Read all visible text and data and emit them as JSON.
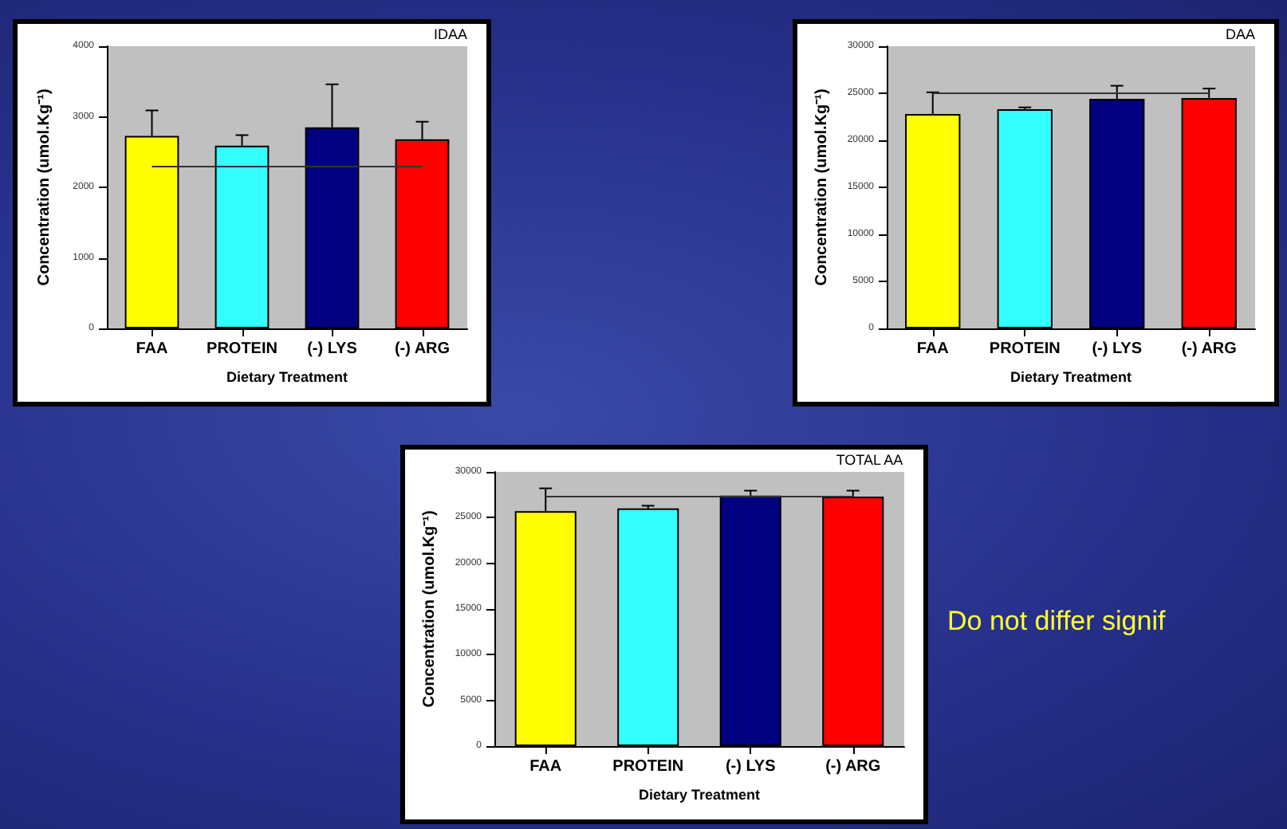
{
  "chart_data": [
    {
      "type": "bar",
      "title": "IDAA",
      "xlabel": "Dietary Treatment",
      "ylabel": "Concentration (umol.Kg⁻¹)",
      "categories": [
        "FAA",
        "PROTEIN",
        "(-) LYS",
        "(-) ARG"
      ],
      "values": [
        2730,
        2590,
        2850,
        2680
      ],
      "colors": [
        "#ffff00",
        "#33ffff",
        "#000080",
        "#ff0000"
      ],
      "errors": [
        [
          2730,
          3090
        ],
        [
          2590,
          2740
        ],
        [
          2850,
          3460
        ],
        [
          2680,
          2930
        ]
      ],
      "ylim": [
        0,
        4000
      ],
      "yticks": [
        0,
        1000,
        2000,
        3000,
        4000
      ],
      "ref_lines": [
        {
          "axis": "y",
          "value": 2300,
          "color": "#333333"
        }
      ]
    },
    {
      "type": "bar",
      "title": "DAA",
      "xlabel": "Dietary Treatment",
      "ylabel": "Concentration (umol.Kg⁻¹)",
      "categories": [
        "FAA",
        "PROTEIN",
        "(-) LYS",
        "(-) ARG"
      ],
      "values": [
        22800,
        23300,
        24400,
        24500
      ],
      "colors": [
        "#ffff00",
        "#33ffff",
        "#000080",
        "#ff0000"
      ],
      "errors": [
        [
          22800,
          25100
        ],
        [
          23300,
          23500
        ],
        [
          24400,
          25800
        ],
        [
          24500,
          25500
        ]
      ],
      "ylim": [
        0,
        30000
      ],
      "yticks": [
        0,
        5000,
        10000,
        15000,
        20000,
        25000,
        30000
      ],
      "ref_lines": [
        {
          "axis": "y",
          "value": 25000,
          "color": "#333333"
        }
      ]
    },
    {
      "type": "bar",
      "title": "TOTAL AA",
      "xlabel": "Dietary Treatment",
      "ylabel": "Concentration (umol.Kg⁻¹)",
      "categories": [
        "FAA",
        "PROTEIN",
        "(-) LYS",
        "(-) ARG"
      ],
      "values": [
        25700,
        26000,
        27400,
        27300
      ],
      "colors": [
        "#ffff00",
        "#33ffff",
        "#000080",
        "#ff0000"
      ],
      "errors": [
        [
          25700,
          28200
        ],
        [
          26000,
          26300
        ],
        [
          27400,
          27950
        ],
        [
          27300,
          27950
        ]
      ],
      "ylim": [
        0,
        30000
      ],
      "yticks": [
        0,
        5000,
        10000,
        15000,
        20000,
        25000,
        30000
      ],
      "ref_lines": [
        {
          "axis": "y",
          "value": 27400,
          "color": "#333333"
        }
      ],
      "annotations": [
        "Do not differ signif"
      ]
    }
  ]
}
